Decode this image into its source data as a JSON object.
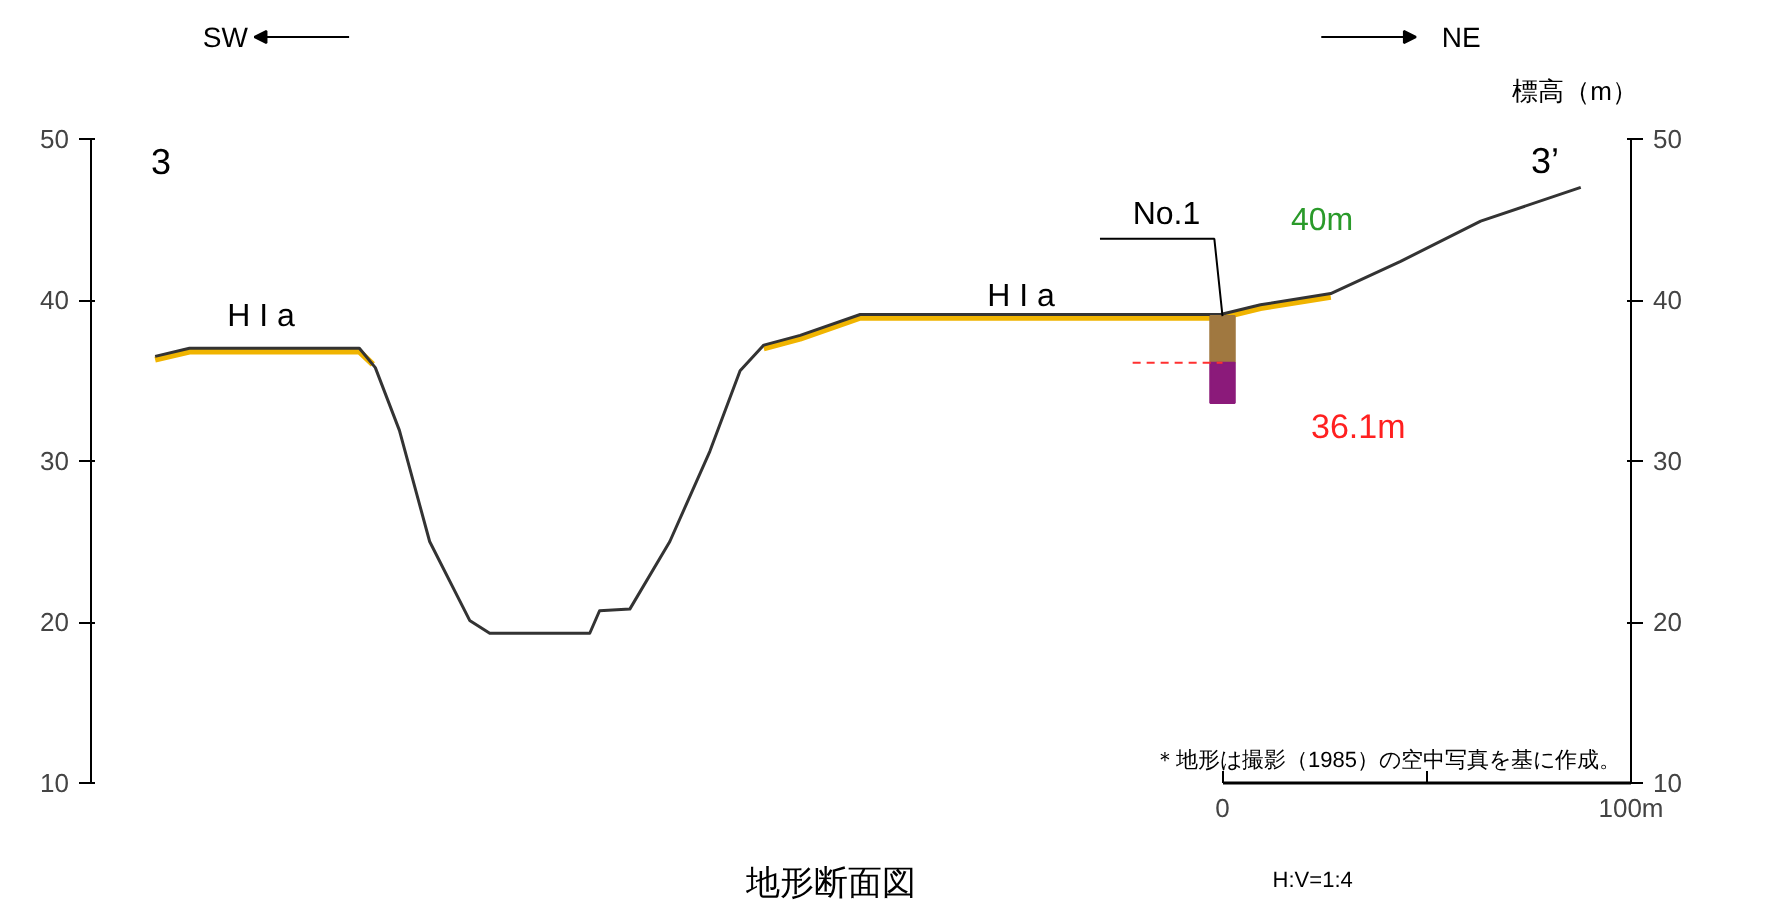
{
  "chart_data": {
    "type": "line",
    "title": "地形断面図",
    "y2label": "標高（m）",
    "xlim": [
      -277,
      100
    ],
    "xticks": [
      0,
      {
        "value": 50,
        "label": null
      },
      {
        "value": 100,
        "label": "100m"
      }
    ],
    "ylim": [
      10,
      50
    ],
    "yticks": [
      10,
      20,
      30,
      40,
      50
    ],
    "y2lim": [
      10,
      50
    ],
    "y2ticks": [
      10,
      20,
      30,
      40,
      50
    ],
    "grid": false,
    "marker": "none",
    "line_style": "solid",
    "series": [
      {
        "color": "#f0b400",
        "x": [
          -261.3,
          -252.9,
          -211.3,
          -208,
          -200,
          -112.3,
          -103.4,
          -88.7,
          -17.6,
          -0.5,
          9.3,
          26.5
        ],
        "values": [
          36.3,
          36.8,
          36.8,
          36.0,
          null,
          37.0,
          37.6,
          38.9,
          38.9,
          38.9,
          39.5,
          40.2
        ]
      },
      {
        "color": "#333333",
        "x": [
          -261.3,
          -252.9,
          -211.3,
          -207.4,
          -201.5,
          -194.1,
          -184.3,
          -179.4,
          -154.9,
          -152.5,
          -145.1,
          -135.3,
          -125.5,
          -118.1,
          -112.3,
          -103.4,
          -88.7,
          -17.6,
          -0.5,
          9.3,
          26.5,
          43.6,
          63.2,
          87.7
        ],
        "values": [
          36.5,
          37.0,
          37.0,
          35.8,
          31.9,
          25.0,
          20.1,
          19.3,
          19.3,
          20.7,
          20.8,
          25.0,
          30.6,
          35.6,
          37.2,
          37.8,
          39.1,
          39.1,
          39.1,
          39.7,
          40.4,
          42.4,
          44.9,
          47.0
        ]
      },
      {
        "type": "bar",
        "color": "#a07840",
        "x": [
          0
        ],
        "base": [
          36.1
        ],
        "values": [
          2.9
        ]
      },
      {
        "type": "bar",
        "color": "#8b1a7a",
        "x": [
          0
        ],
        "base": [
          33.6
        ],
        "values": [
          2.5
        ]
      },
      {
        "color": "#ff3030",
        "line_style": "dashed",
        "x": [
          -22,
          0
        ],
        "values": [
          36.1,
          36.1
        ]
      }
    ],
    "annotations": [
      "SW",
      "NE",
      "3",
      "3’",
      "H I a",
      "H I a",
      {
        "text": "No.1",
        "x": 0,
        "y": 39
      },
      "40m",
      "36.1m",
      "＊地形は撮影（1985）の空中写真を基に作成。",
      "H:V=1:4"
    ]
  }
}
